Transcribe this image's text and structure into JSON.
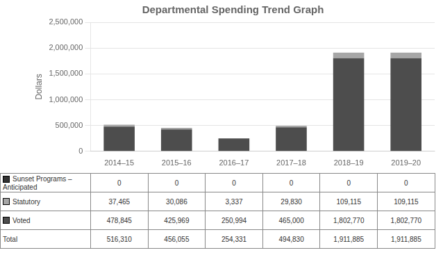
{
  "chart_data": {
    "type": "bar",
    "stacked": true,
    "title": "Departmental Spending Trend Graph",
    "ylabel": "Dollars",
    "categories": [
      "2014–15",
      "2015–16",
      "2016–17",
      "2017–18",
      "2018–19",
      "2019–20"
    ],
    "series": [
      {
        "name": "Voted",
        "color": "#4d4d4d",
        "values": [
          478845,
          425969,
          250994,
          465000,
          1802770,
          1802770
        ],
        "value_labels": [
          "478,845",
          "425,969",
          "250,994",
          "465,000",
          "1,802,770",
          "1,802,770"
        ]
      },
      {
        "name": "Statutory",
        "color": "#a6a6a6",
        "values": [
          37465,
          30086,
          3337,
          29830,
          109115,
          109115
        ],
        "value_labels": [
          "37,465",
          "30,086",
          "3,337",
          "29,830",
          "109,115",
          "109,115"
        ]
      },
      {
        "name": "Sunset Programs – Anticipated",
        "color": "#333333",
        "values": [
          0,
          0,
          0,
          0,
          0,
          0
        ],
        "value_labels": [
          "0",
          "0",
          "0",
          "0",
          "0",
          "0"
        ]
      }
    ],
    "totals": {
      "name": "Total",
      "values": [
        516310,
        456055,
        254331,
        494830,
        1911885,
        1911885
      ],
      "value_labels": [
        "516,310",
        "456,055",
        "254,331",
        "494,830",
        "1,911,885",
        "1,911,885"
      ]
    },
    "ylim": [
      0,
      2500000
    ],
    "yticks": [
      0,
      {
        "value": 500000,
        "label": "500,000"
      },
      {
        "value": 1000000,
        "label": "1,000,000"
      },
      {
        "value": 1500000,
        "label": "1,500,000"
      },
      {
        "value": 2000000,
        "label": "2,000,000"
      },
      {
        "value": 2500000,
        "label": "2,500,000"
      }
    ],
    "grid": true
  }
}
